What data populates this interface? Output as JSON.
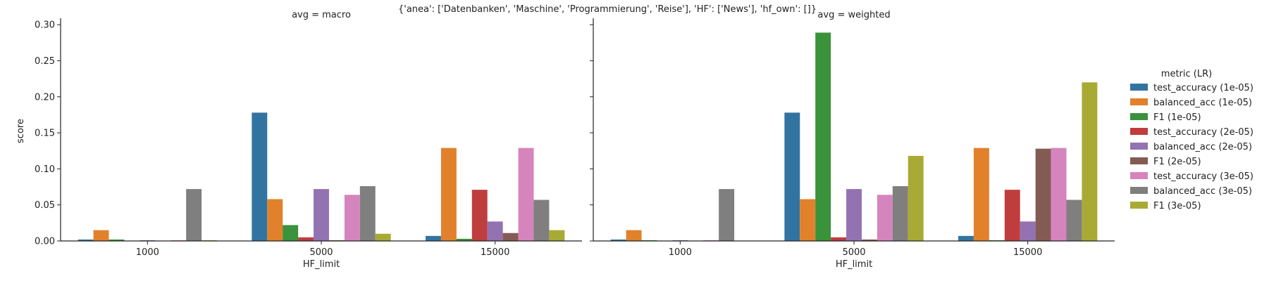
{
  "figure": {
    "suptitle": "{'anea': ['Datenbanken', 'Maschine', 'Programmierung', 'Reise'], 'HF': ['News'], 'hf_own': []}"
  },
  "chart_data": [
    {
      "type": "bar",
      "title": "avg = macro",
      "xlabel": "HF_limit",
      "ylabel": "score",
      "categories": [
        "1000",
        "5000",
        "15000"
      ],
      "ylim": [
        0,
        0.305
      ],
      "yticks": [
        "0.00",
        "0.05",
        "0.10",
        "0.15",
        "0.20",
        "0.25",
        "0.30"
      ],
      "series": [
        {
          "name": "test_accuracy (1e-05)",
          "color": "#3274a1",
          "values": [
            0.002,
            0.178,
            0.007
          ]
        },
        {
          "name": "balanced_acc (1e-05)",
          "color": "#e1812c",
          "values": [
            0.015,
            0.058,
            0.129
          ]
        },
        {
          "name": "F1 (1e-05)",
          "color": "#3a923a",
          "values": [
            0.002,
            0.022,
            0.003
          ]
        },
        {
          "name": "test_accuracy (2e-05)",
          "color": "#c03d3e",
          "values": [
            0.0,
            0.005,
            0.071
          ]
        },
        {
          "name": "balanced_acc (2e-05)",
          "color": "#9372b2",
          "values": [
            0.001,
            0.072,
            0.027
          ]
        },
        {
          "name": "F1 (2e-05)",
          "color": "#845b53",
          "values": [
            0.0,
            0.001,
            0.011
          ]
        },
        {
          "name": "test_accuracy (3e-05)",
          "color": "#d684bd",
          "values": [
            0.001,
            0.064,
            0.129
          ]
        },
        {
          "name": "balanced_acc (3e-05)",
          "color": "#7f7f7f",
          "values": [
            0.072,
            0.076,
            0.057
          ]
        },
        {
          "name": "F1 (3e-05)",
          "color": "#a9aa35",
          "values": [
            0.001,
            0.01,
            0.015
          ]
        }
      ]
    },
    {
      "type": "bar",
      "title": "avg = weighted",
      "xlabel": "HF_limit",
      "ylabel": "",
      "categories": [
        "1000",
        "5000",
        "15000"
      ],
      "ylim": [
        0,
        0.305
      ],
      "series": [
        {
          "name": "test_accuracy (1e-05)",
          "color": "#3274a1",
          "values": [
            0.002,
            0.178,
            0.007
          ]
        },
        {
          "name": "balanced_acc (1e-05)",
          "color": "#e1812c",
          "values": [
            0.015,
            0.058,
            0.129
          ]
        },
        {
          "name": "F1 (1e-05)",
          "color": "#3a923a",
          "values": [
            0.001,
            0.289,
            0.001
          ]
        },
        {
          "name": "test_accuracy (2e-05)",
          "color": "#c03d3e",
          "values": [
            0.0,
            0.005,
            0.071
          ]
        },
        {
          "name": "balanced_acc (2e-05)",
          "color": "#9372b2",
          "values": [
            0.001,
            0.072,
            0.027
          ]
        },
        {
          "name": "F1 (2e-05)",
          "color": "#845b53",
          "values": [
            0.0,
            0.002,
            0.128
          ]
        },
        {
          "name": "test_accuracy (3e-05)",
          "color": "#d684bd",
          "values": [
            0.001,
            0.064,
            0.129
          ]
        },
        {
          "name": "balanced_acc (3e-05)",
          "color": "#7f7f7f",
          "values": [
            0.072,
            0.076,
            0.057
          ]
        },
        {
          "name": "F1 (3e-05)",
          "color": "#a9aa35",
          "values": [
            0.0,
            0.118,
            0.22
          ]
        }
      ]
    }
  ],
  "legend": {
    "title": "metric (LR)",
    "placement": "right",
    "items": [
      {
        "label": "test_accuracy (1e-05)",
        "color": "#3274a1"
      },
      {
        "label": "balanced_acc (1e-05)",
        "color": "#e1812c"
      },
      {
        "label": "F1 (1e-05)",
        "color": "#3a923a"
      },
      {
        "label": "test_accuracy (2e-05)",
        "color": "#c03d3e"
      },
      {
        "label": "balanced_acc (2e-05)",
        "color": "#9372b2"
      },
      {
        "label": "F1 (2e-05)",
        "color": "#845b53"
      },
      {
        "label": "test_accuracy (3e-05)",
        "color": "#d684bd"
      },
      {
        "label": "balanced_acc (3e-05)",
        "color": "#7f7f7f"
      },
      {
        "label": "F1 (3e-05)",
        "color": "#a9aa35"
      }
    ]
  }
}
